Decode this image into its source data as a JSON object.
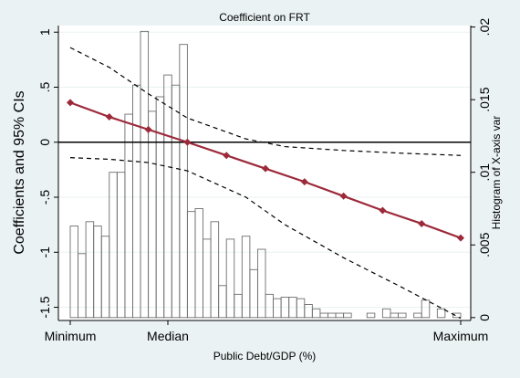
{
  "chart_data": {
    "type": "line",
    "title": "Coefficient on FRT",
    "xlabel": "Public Debt/GDP (%)",
    "ylabel": "Coefficients and 95% CIs",
    "y2label": "Histogram of X-axis var",
    "x_tick_labels": [
      {
        "x": 0.0,
        "label": "Minimum"
      },
      {
        "x": 0.25,
        "label": "Median"
      },
      {
        "x": 1.0,
        "label": "Maximum"
      }
    ],
    "ylim": [
      -1.62,
      1.06
    ],
    "yticks": [
      {
        "v": -1.5,
        "label": "-1.5"
      },
      {
        "v": -1,
        "label": "-1"
      },
      {
        "v": -0.5,
        "label": "-.5"
      },
      {
        "v": 0,
        "label": "0"
      },
      {
        "v": 0.5,
        "label": ".5"
      },
      {
        "v": 1,
        "label": "1"
      }
    ],
    "y2lim": [
      -0.0002,
      0.0201
    ],
    "y2ticks": [
      {
        "v": 0,
        "label": "0"
      },
      {
        "v": 0.005,
        "label": ".005"
      },
      {
        "v": 0.01,
        "label": ".01"
      },
      {
        "v": 0.015,
        "label": ".015"
      },
      {
        "v": 0.02,
        "label": ".02"
      }
    ],
    "reference_line_y": 0,
    "coefficient": {
      "x": [
        0.0,
        0.1,
        0.2,
        0.3,
        0.4,
        0.5,
        0.6,
        0.7,
        0.8,
        0.9,
        1.0
      ],
      "y": [
        0.36,
        0.23,
        0.115,
        0.0,
        -0.12,
        -0.24,
        -0.36,
        -0.49,
        -0.62,
        -0.74,
        -0.87
      ]
    },
    "ci_upper": {
      "x": [
        0.0,
        0.1,
        0.2,
        0.3,
        0.45,
        0.55,
        0.7,
        0.85,
        1.0
      ],
      "y": [
        0.86,
        0.68,
        0.44,
        0.22,
        0.03,
        -0.04,
        -0.075,
        -0.1,
        -0.12
      ]
    },
    "ci_lower": {
      "x": [
        0.0,
        0.1,
        0.2,
        0.3,
        0.45,
        0.55,
        0.7,
        0.85,
        1.0
      ],
      "y": [
        -0.14,
        -0.155,
        -0.185,
        -0.26,
        -0.5,
        -0.75,
        -1.05,
        -1.32,
        -1.6
      ]
    },
    "histogram": {
      "bin_width": 0.02,
      "x": [
        0.0,
        0.02,
        0.04,
        0.06,
        0.08,
        0.1,
        0.12,
        0.14,
        0.16,
        0.18,
        0.2,
        0.22,
        0.24,
        0.26,
        0.28,
        0.3,
        0.32,
        0.34,
        0.36,
        0.38,
        0.4,
        0.42,
        0.44,
        0.46,
        0.48,
        0.5,
        0.52,
        0.54,
        0.56,
        0.58,
        0.6,
        0.62,
        0.64,
        0.66,
        0.68,
        0.7,
        0.76,
        0.8,
        0.82,
        0.84,
        0.88,
        0.9,
        0.94,
        0.98
      ],
      "density": [
        0.0063,
        0.0044,
        0.0066,
        0.0063,
        0.0056,
        0.01,
        0.01,
        0.014,
        0.016,
        0.0197,
        0.0142,
        0.0152,
        0.0167,
        0.016,
        0.0188,
        0.0073,
        0.0075,
        0.0054,
        0.0066,
        0.0022,
        0.0054,
        0.0016,
        0.0056,
        0.0033,
        0.0047,
        0.0016,
        0.0013,
        0.0014,
        0.0014,
        0.0013,
        0.0009,
        0.0006,
        0.0003,
        0.0003,
        0.0003,
        0.0003,
        0.0003,
        0.0006,
        0.0003,
        0.0003,
        0.0003,
        0.0012,
        0.0006,
        0.0003
      ]
    },
    "colors": {
      "background": "#eaf2f3",
      "plot_area": "#ffffff",
      "coefficient_line": "#9c2a3a",
      "ci_line": "#000000",
      "histogram_edge": "#6e6e6e",
      "grid": "#eaf2f3"
    },
    "grid": true,
    "legend": "none"
  }
}
